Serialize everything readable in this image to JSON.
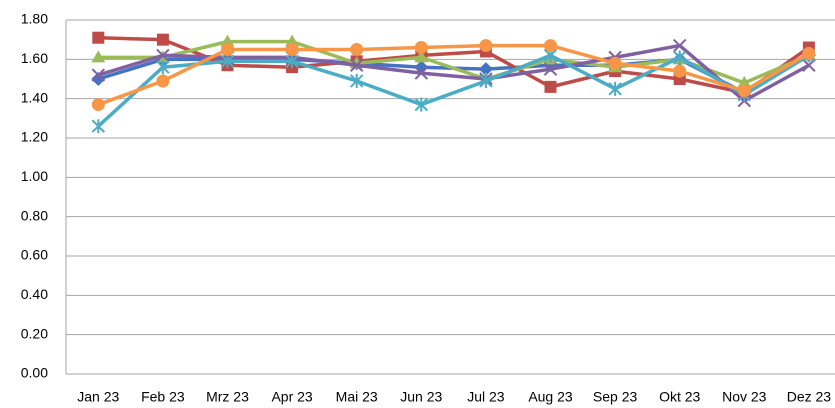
{
  "chart_data": {
    "type": "line",
    "categories": [
      "Jan 23",
      "Feb 23",
      "Mrz 23",
      "Apr 23",
      "Mai 23",
      "Jun 23",
      "Jul 23",
      "Aug 23",
      "Sep 23",
      "Okt 23",
      "Nov 23",
      "Dez 23"
    ],
    "series": [
      {
        "color": "#4472c4",
        "marker": "diamond",
        "values": [
          1.5,
          1.6,
          1.6,
          1.6,
          1.58,
          1.56,
          1.55,
          1.57,
          1.57,
          1.6,
          1.43,
          1.62
        ]
      },
      {
        "color": "#be4b48",
        "marker": "square",
        "values": [
          1.71,
          1.7,
          1.57,
          1.56,
          1.59,
          1.62,
          1.64,
          1.46,
          1.54,
          1.5,
          1.43,
          1.66
        ]
      },
      {
        "color": "#9bbb59",
        "marker": "triangle",
        "values": [
          1.61,
          1.61,
          1.69,
          1.69,
          1.58,
          1.61,
          1.5,
          1.6,
          1.56,
          1.6,
          1.48,
          1.62
        ]
      },
      {
        "color": "#7f60a0",
        "marker": "x",
        "values": [
          1.52,
          1.62,
          1.61,
          1.61,
          1.57,
          1.53,
          1.5,
          1.55,
          1.61,
          1.67,
          1.39,
          1.57
        ]
      },
      {
        "color": "#4bacc6",
        "marker": "star",
        "values": [
          1.26,
          1.56,
          1.59,
          1.59,
          1.49,
          1.37,
          1.49,
          1.62,
          1.45,
          1.61,
          1.42,
          1.62
        ]
      },
      {
        "color": "#f79646",
        "marker": "circle",
        "values": [
          1.37,
          1.49,
          1.65,
          1.65,
          1.65,
          1.66,
          1.67,
          1.67,
          1.58,
          1.54,
          1.44,
          1.63
        ]
      }
    ],
    "ylim": [
      0,
      1.8
    ],
    "yticks": [
      {
        "value": 0,
        "label": "0.00"
      },
      {
        "value": 0.2,
        "label": "0.20"
      },
      {
        "value": 0.4,
        "label": "0.40"
      },
      {
        "value": 0.6,
        "label": "0.60"
      },
      {
        "value": 0.8,
        "label": "0.80"
      },
      {
        "value": 1.0,
        "label": "1.00"
      },
      {
        "value": 1.2,
        "label": "1.20"
      },
      {
        "value": 1.4,
        "label": "1.40"
      },
      {
        "value": 1.6,
        "label": "1.60"
      },
      {
        "value": 1.8,
        "label": "1.80"
      }
    ],
    "grid": true
  }
}
